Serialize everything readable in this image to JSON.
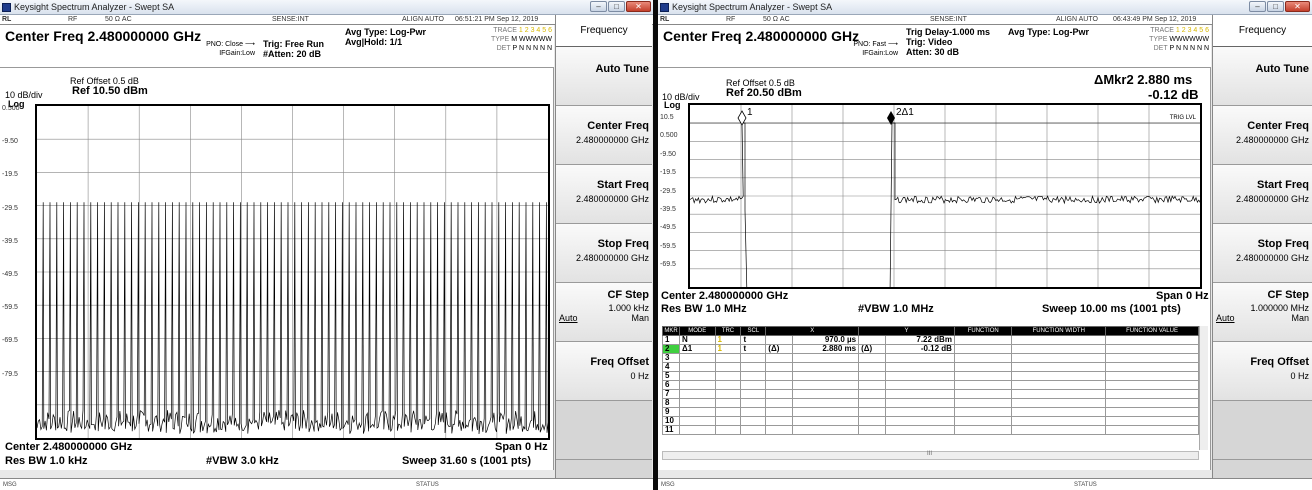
{
  "left": {
    "window_title": "Keysight Spectrum Analyzer - Swept SA",
    "status": {
      "rl": "RL",
      "rf": "RF",
      "impedance": "50 Ω  AC",
      "sense": "SENSE:INT",
      "align": "ALIGN AUTO",
      "datetime": "06:51:21 PM Sep 12, 2019"
    },
    "center_freq": "Center Freq 2.480000000 GHz",
    "pno": "PNO: Close ⟶",
    "ifgain": "IFGain:Low",
    "trig": "Trig: Free Run",
    "atten": "#Atten: 20 dB",
    "avg_type": "Avg Type: Log-Pwr",
    "avg_hold": "Avg|Hold: 1/1",
    "trace_row": {
      "label": "TRACE",
      "nums": "1 2 3 4 5 6"
    },
    "type_row": {
      "label": "TYPE",
      "val": "M WWWWW"
    },
    "det_row": {
      "label": "DET",
      "val": "P N N N N N"
    },
    "scale": "10 dB/div",
    "log": "Log",
    "ref_offset": "Ref Offset 0.5 dB",
    "ref": "Ref 10.50 dBm",
    "y_labels": [
      "0.500",
      "-9.50",
      "-19.5",
      "-29.5",
      "-39.5",
      "-49.5",
      "-59.5",
      "-69.5",
      "-79.5"
    ],
    "center_bottom": "Center 2.480000000 GHz",
    "span": "Span 0 Hz",
    "res_bw": "Res BW 1.0 kHz",
    "vbw": "#VBW 3.0 kHz",
    "sweep": "Sweep  31.60 s (1001 pts)",
    "msg": "MSG",
    "status_lbl": "STATUS"
  },
  "right": {
    "window_title": "Keysight Spectrum Analyzer - Swept SA",
    "status": {
      "rl": "RL",
      "rf": "RF",
      "impedance": "50 Ω  AC",
      "sense": "SENSE:INT",
      "align": "ALIGN AUTO",
      "datetime": "06:43:49 PM Sep 12, 2019"
    },
    "center_freq": "Center Freq 2.480000000 GHz",
    "pno": "PNO: Fast ⟶",
    "ifgain": "IFGain:Low",
    "trig_delay": "Trig Delay-1.000 ms",
    "trig": "Trig: Video",
    "atten": "Atten: 30 dB",
    "avg_type": "Avg Type: Log-Pwr",
    "trace_row": {
      "label": "TRACE",
      "nums": "1 2 3 4 5 6"
    },
    "type_row": {
      "label": "TYPE",
      "val": "WWWWWW"
    },
    "det_row": {
      "label": "DET",
      "val": "P N N N N N"
    },
    "scale": "10 dB/div",
    "log": "Log",
    "ref_offset": "Ref Offset 0.5 dB",
    "ref": "Ref 20.50 dBm",
    "delta_mkr": "ΔMkr2  2.880 ms",
    "delta_val": "-0.12 dB",
    "marker1": "1",
    "marker2": "2Δ1",
    "trig_lvl": "TRIG LVL",
    "y_labels": [
      "10.5",
      "0.500",
      "-9.50",
      "-19.5",
      "-29.5",
      "-39.5",
      "-49.5",
      "-59.5",
      "-69.5"
    ],
    "center_bottom": "Center 2.480000000 GHz",
    "span": "Span 0 Hz",
    "res_bw": "Res BW 1.0 MHz",
    "vbw": "#VBW 1.0 MHz",
    "sweep": "Sweep  10.00 ms (1001 pts)",
    "table": {
      "headers": [
        "MKR",
        "MODE",
        "TRC",
        "SCL",
        "X",
        "Y",
        "FUNCTION",
        "FUNCTION WIDTH",
        "FUNCTION VALUE"
      ],
      "rows": [
        [
          "1",
          "N",
          "1",
          "t",
          "",
          "970.0 µs",
          "",
          "7.22 dBm",
          "",
          "",
          ""
        ],
        [
          "2",
          "Δ1",
          "1",
          "t",
          "(Δ)",
          "2.880 ms",
          "(Δ)",
          "-0.12 dB",
          "",
          "",
          ""
        ],
        [
          "3",
          "",
          "",
          "",
          "",
          "",
          "",
          "",
          "",
          "",
          ""
        ],
        [
          "4",
          "",
          "",
          "",
          "",
          "",
          "",
          "",
          "",
          "",
          ""
        ],
        [
          "5",
          "",
          "",
          "",
          "",
          "",
          "",
          "",
          "",
          "",
          ""
        ],
        [
          "6",
          "",
          "",
          "",
          "",
          "",
          "",
          "",
          "",
          "",
          ""
        ],
        [
          "7",
          "",
          "",
          "",
          "",
          "",
          "",
          "",
          "",
          "",
          ""
        ],
        [
          "8",
          "",
          "",
          "",
          "",
          "",
          "",
          "",
          "",
          "",
          ""
        ],
        [
          "9",
          "",
          "",
          "",
          "",
          "",
          "",
          "",
          "",
          "",
          ""
        ],
        [
          "10",
          "",
          "",
          "",
          "",
          "",
          "",
          "",
          "",
          "",
          ""
        ],
        [
          "11",
          "",
          "",
          "",
          "",
          "",
          "",
          "",
          "",
          "",
          ""
        ]
      ],
      "hscroll_mark": "III"
    },
    "msg": "MSG",
    "status_lbl": "STATUS"
  },
  "softkeys": {
    "header": "Frequency",
    "auto_tune": "Auto Tune",
    "center_freq": "Center Freq",
    "center_val": "2.480000000 GHz",
    "start_freq": "Start Freq",
    "start_val": "2.480000000 GHz",
    "stop_freq": "Stop Freq",
    "stop_val": "2.480000000 GHz",
    "cf_step": "CF Step",
    "cf_step_val_left": "1.000 kHz",
    "cf_step_val_right": "1.000000 MHz",
    "auto": "Auto",
    "man": "Man",
    "freq_offset": "Freq Offset",
    "freq_offset_val": "0 Hz"
  },
  "colors": {
    "active_marker": "#3fcf3f",
    "trace_number": "#d8b800"
  }
}
